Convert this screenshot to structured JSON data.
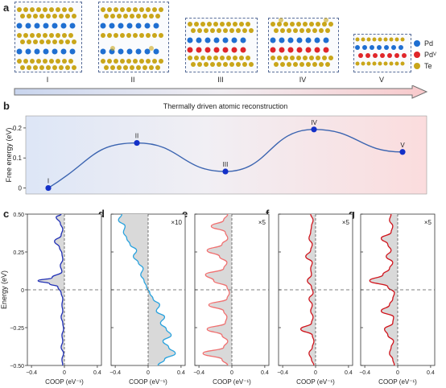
{
  "panels": {
    "a": {
      "label": "a"
    },
    "b": {
      "label": "b",
      "title": "Thermally driven atomic reconstruction",
      "ylabel": "Free energy (eV)"
    },
    "c": {
      "label": "c"
    },
    "d": {
      "label": "d"
    },
    "e": {
      "label": "e"
    },
    "f": {
      "label": "f"
    },
    "g": {
      "label": "g"
    }
  },
  "structures": [
    "I",
    "II",
    "III",
    "IV",
    "V"
  ],
  "legend": [
    {
      "name": "Pd",
      "color": "#1f6fd1"
    },
    {
      "name": "Pd",
      "sub": "V",
      "color": "#e0262a"
    },
    {
      "name": "Te",
      "color": "#c9a61a"
    }
  ],
  "colors": {
    "curve": "#3b64b0",
    "point": "#1330c8",
    "arrow": "#6f6f6f"
  },
  "chart_data": [
    {
      "type": "line",
      "title": "Thermally driven atomic reconstruction",
      "ylabel": "Free energy (eV)",
      "ylim": [
        -0.02,
        0.24
      ],
      "yticks": [
        "0",
        "0.1",
        "0.2"
      ],
      "yticks_values": [
        0,
        0.1,
        0.2
      ],
      "x": [
        1,
        2,
        3,
        4,
        5
      ],
      "point_labels": [
        "I",
        "II",
        "III",
        "IV",
        "V"
      ],
      "values": [
        0.0,
        0.15,
        0.055,
        0.195,
        0.12
      ]
    },
    {
      "type": "line",
      "panel": "c",
      "xlabel": "COOP (eV⁻¹)",
      "ylabel": "Energy (eV)",
      "xlim": [
        -0.45,
        0.45
      ],
      "ylim": [
        -0.5,
        0.5
      ],
      "xticks": [
        "−0.4",
        "0",
        "0.4"
      ],
      "yticks": [
        "0.50",
        "0.25",
        "0",
        "−0.25",
        "−0.50"
      ],
      "scale": "",
      "color": "#1f2fb5",
      "energy": [
        -0.5,
        -0.46,
        -0.42,
        -0.38,
        -0.34,
        -0.3,
        -0.26,
        -0.22,
        -0.18,
        -0.14,
        -0.1,
        -0.06,
        -0.02,
        0.02,
        0.04,
        0.06,
        0.08,
        0.12,
        0.16,
        0.2,
        0.24,
        0.28,
        0.32,
        0.36,
        0.4,
        0.44,
        0.48,
        0.5
      ],
      "coop": [
        -0.02,
        -0.03,
        -0.01,
        -0.04,
        -0.02,
        -0.03,
        -0.01,
        -0.02,
        -0.04,
        -0.02,
        -0.03,
        -0.02,
        -0.04,
        -0.08,
        -0.18,
        -0.32,
        -0.15,
        -0.03,
        -0.05,
        -0.02,
        -0.03,
        -0.06,
        -0.12,
        -0.04,
        -0.02,
        -0.05,
        -0.1,
        -0.04
      ]
    },
    {
      "type": "line",
      "panel": "d",
      "xlabel": "COOP (eV⁻¹)",
      "xlim": [
        -0.45,
        0.45
      ],
      "ylim": [
        -0.5,
        0.5
      ],
      "xticks": [
        "−0.4",
        "0",
        "0.4"
      ],
      "scale": "×10",
      "color": "#2aa3de",
      "energy": [
        -0.5,
        -0.46,
        -0.42,
        -0.38,
        -0.34,
        -0.3,
        -0.26,
        -0.22,
        -0.18,
        -0.14,
        -0.1,
        -0.06,
        -0.02,
        0.02,
        0.06,
        0.1,
        0.14,
        0.18,
        0.22,
        0.26,
        0.3,
        0.34,
        0.38,
        0.42,
        0.46,
        0.5
      ],
      "coop": [
        0.12,
        0.2,
        0.33,
        0.25,
        0.18,
        0.28,
        0.22,
        0.15,
        0.2,
        0.1,
        0.14,
        0.06,
        0.02,
        -0.02,
        -0.05,
        -0.09,
        -0.06,
        -0.12,
        -0.18,
        -0.14,
        -0.22,
        -0.26,
        -0.3,
        -0.28,
        -0.36,
        -0.32
      ]
    },
    {
      "type": "line",
      "panel": "e",
      "xlabel": "COOP (eV⁻¹)",
      "xlim": [
        -0.45,
        0.45
      ],
      "ylim": [
        -0.5,
        0.5
      ],
      "xticks": [
        "−0.4",
        "0",
        "0.4"
      ],
      "scale": "×5",
      "color": "#f07070",
      "energy": [
        -0.5,
        -0.46,
        -0.42,
        -0.38,
        -0.34,
        -0.3,
        -0.26,
        -0.22,
        -0.18,
        -0.14,
        -0.1,
        -0.06,
        -0.02,
        0.02,
        0.06,
        0.1,
        0.14,
        0.18,
        0.22,
        0.26,
        0.3,
        0.34,
        0.38,
        0.42,
        0.46,
        0.5
      ],
      "coop": [
        -0.05,
        -0.12,
        -0.35,
        -0.1,
        -0.05,
        -0.12,
        -0.3,
        -0.08,
        -0.06,
        -0.1,
        -0.28,
        -0.06,
        -0.03,
        -0.06,
        -0.22,
        -0.32,
        -0.1,
        -0.06,
        -0.15,
        -0.3,
        -0.12,
        -0.05,
        -0.08,
        -0.25,
        -0.1,
        -0.05
      ]
    },
    {
      "type": "line",
      "panel": "f",
      "xlabel": "COOP (eV⁻¹)",
      "xlim": [
        -0.45,
        0.45
      ],
      "ylim": [
        -0.5,
        0.5
      ],
      "xticks": [
        "−0.4",
        "0",
        "0.4"
      ],
      "scale": "×5",
      "color": "#d0141c",
      "energy": [
        -0.5,
        -0.46,
        -0.42,
        -0.38,
        -0.34,
        -0.3,
        -0.26,
        -0.22,
        -0.18,
        -0.14,
        -0.1,
        -0.06,
        -0.02,
        0.02,
        0.06,
        0.1,
        0.14,
        0.18,
        0.22,
        0.26,
        0.3,
        0.34,
        0.38,
        0.42,
        0.46,
        0.5
      ],
      "coop": [
        -0.02,
        -0.05,
        -0.08,
        -0.04,
        -0.02,
        -0.04,
        -0.18,
        -0.05,
        -0.03,
        -0.06,
        -0.04,
        -0.08,
        -0.03,
        -0.05,
        -0.1,
        -0.05,
        -0.06,
        -0.04,
        -0.12,
        -0.06,
        -0.04,
        -0.08,
        -0.06,
        -0.05,
        -0.03,
        -0.06
      ]
    },
    {
      "type": "line",
      "panel": "g",
      "xlabel": "COOP (eV⁻¹)",
      "xlim": [
        -0.45,
        0.45
      ],
      "ylim": [
        -0.5,
        0.5
      ],
      "xticks": [
        "−0.4",
        "0",
        "0.4"
      ],
      "scale": "×5",
      "color": "#d0141c",
      "energy": [
        -0.5,
        -0.46,
        -0.42,
        -0.38,
        -0.34,
        -0.3,
        -0.26,
        -0.22,
        -0.18,
        -0.14,
        -0.1,
        -0.06,
        -0.02,
        0.02,
        0.06,
        0.1,
        0.14,
        0.18,
        0.22,
        0.26,
        0.3,
        0.34,
        0.38,
        0.42,
        0.46,
        0.5
      ],
      "coop": [
        -0.04,
        -0.06,
        -0.1,
        -0.08,
        -0.05,
        -0.12,
        -0.16,
        -0.06,
        -0.05,
        -0.2,
        -0.1,
        -0.06,
        -0.04,
        -0.12,
        -0.34,
        -0.18,
        -0.1,
        -0.06,
        -0.14,
        -0.08,
        -0.12,
        -0.2,
        -0.08,
        -0.06,
        -0.1,
        -0.08
      ]
    }
  ]
}
